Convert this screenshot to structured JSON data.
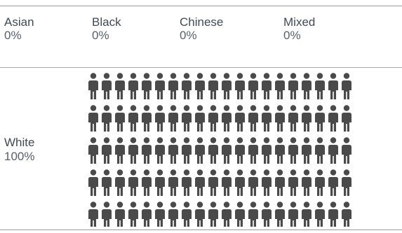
{
  "chart_data": {
    "type": "pictogram",
    "title": "",
    "categories": [
      {
        "label": "Asian",
        "percent_label": "0%",
        "value": 0
      },
      {
        "label": "Black",
        "percent_label": "0%",
        "value": 0
      },
      {
        "label": "Chinese",
        "percent_label": "0%",
        "value": 0
      },
      {
        "label": "Mixed",
        "percent_label": "0%",
        "value": 0
      },
      {
        "label": "White",
        "percent_label": "100%",
        "value": 100
      }
    ],
    "icon": "person-icon",
    "icon_count": 100,
    "icon_rows": 5,
    "icon_columns": 20,
    "icon_color": "#4a4a4a",
    "filled_category": "White"
  }
}
